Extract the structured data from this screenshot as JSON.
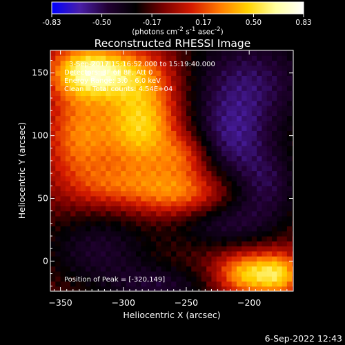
{
  "chart_data": {
    "type": "heatmap",
    "title": "Reconstructed RHESSI Image",
    "xlabel": "Heliocentric X (arcsec)",
    "ylabel": "Heliocentric Y (arcsec)",
    "xlim": [
      -358,
      -165
    ],
    "ylim": [
      -24,
      168
    ],
    "xticks": [
      -350,
      -300,
      -250,
      -200
    ],
    "yticks": [
      0,
      50,
      100,
      150
    ],
    "colorbar": {
      "ticks": [
        -0.83,
        -0.5,
        -0.17,
        0.17,
        0.5,
        0.83
      ],
      "tick_labels": [
        "-0.83",
        "-0.50",
        "-0.17",
        "0.17",
        "0.50",
        "0.83"
      ],
      "range": [
        -0.83,
        0.83
      ],
      "units_html": "(photons cm<sup>-2</sup> s<sup>-1</sup> asec<sup>-2</sup>)",
      "colors": [
        "#0000ff",
        "#4a1fa8",
        "#220033",
        "#000000",
        "#7a0000",
        "#d41a00",
        "#ff7a00",
        "#ffd200",
        "#ffffa0",
        "#ffffff"
      ]
    },
    "annotations": {
      "time_line": "3-Sep-2017 15:16:52.000 to 15:19:40.000",
      "detectors_line": "Detectors: 3F 6F 8F, Att 0",
      "energy_line": "Energy Range: 3.0 - 6.0 keV",
      "clean_line": "Clean    Total counts: 4.54E+04",
      "peak_line": "Position of Peak = [-320,149]"
    },
    "peak": {
      "x": -320,
      "y": 149
    },
    "blobs": [
      {
        "x": -285,
        "y": 110,
        "sx": 22,
        "sy": 28,
        "a": 0.62
      },
      {
        "x": -330,
        "y": 152,
        "sx": 20,
        "sy": 14,
        "a": 0.55
      },
      {
        "x": -335,
        "y": 100,
        "sx": 18,
        "sy": 30,
        "a": 0.38
      },
      {
        "x": -300,
        "y": 150,
        "sx": 26,
        "sy": 14,
        "a": 0.35
      },
      {
        "x": -255,
        "y": 55,
        "sx": 28,
        "sy": 14,
        "a": 0.42
      },
      {
        "x": -250,
        "y": 85,
        "sx": 14,
        "sy": 12,
        "a": 0.28
      },
      {
        "x": -310,
        "y": 60,
        "sx": 20,
        "sy": 12,
        "a": 0.2
      },
      {
        "x": -200,
        "y": -10,
        "sx": 18,
        "sy": 12,
        "a": 0.58
      },
      {
        "x": -175,
        "y": -10,
        "sx": 12,
        "sy": 12,
        "a": 0.42
      },
      {
        "x": -200,
        "y": 145,
        "sx": 40,
        "sy": 30,
        "a": -0.38
      },
      {
        "x": -215,
        "y": 95,
        "sx": 25,
        "sy": 25,
        "a": -0.35
      },
      {
        "x": -320,
        "y": 10,
        "sx": 32,
        "sy": 22,
        "a": -0.3
      },
      {
        "x": -220,
        "y": 30,
        "sx": 30,
        "sy": 14,
        "a": -0.3
      },
      {
        "x": -185,
        "y": 60,
        "sx": 20,
        "sy": 20,
        "a": -0.3
      },
      {
        "x": -270,
        "y": -20,
        "sx": 30,
        "sy": 12,
        "a": -0.28
      }
    ]
  },
  "footer": {
    "timestamp": "6-Sep-2022 12:43"
  }
}
